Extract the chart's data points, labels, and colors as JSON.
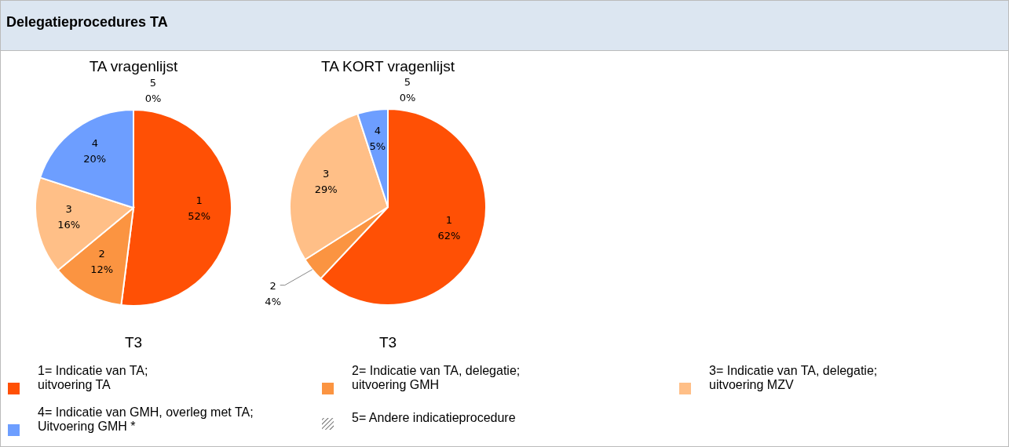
{
  "chart_data": [
    {
      "type": "pie",
      "title": "TA vragenlijst",
      "xlabel": "T3",
      "categories": [
        "1",
        "2",
        "3",
        "4",
        "5"
      ],
      "values": [
        52,
        12,
        16,
        20,
        0
      ],
      "value_labels": [
        "52%",
        "12%",
        "16%",
        "20%",
        "0%"
      ],
      "colors": [
        "#ff5005",
        "#fb9441",
        "#ffbf87",
        "#6d9eff",
        "#404040"
      ],
      "annotations": [
        "Delegatieprocedures TA",
        "1= Indicatie van TA;\nuitvoering TA",
        "2= Indicatie van TA, delegatie;\nuitvoering GMH",
        "3= Indicatie van TA, delegatie;\nuitvoering MZV",
        "4= Indicatie van GMH, overleg met TA;\nUitvoering GMH *",
        "5= Andere indicatieprocedure"
      ]
    },
    {
      "type": "pie",
      "title": "TA KORT vragenlijst",
      "xlabel": "T3",
      "categories": [
        "1",
        "2",
        "3",
        "4",
        "5"
      ],
      "values": [
        62,
        4,
        29,
        5,
        0
      ],
      "value_labels": [
        "62%",
        "4%",
        "29%",
        "5%",
        "0%"
      ],
      "colors": [
        "#ff5005",
        "#fb9441",
        "#ffbf87",
        "#6d9eff",
        "#404040"
      ]
    }
  ]
}
